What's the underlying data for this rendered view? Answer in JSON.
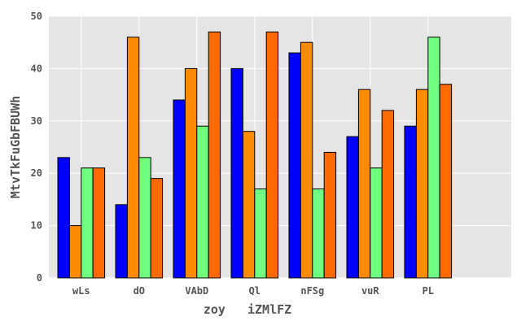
{
  "chart_data": {
    "type": "bar",
    "title": "",
    "xlabel": "zoy   iZMlFZ",
    "ylabel": "MtvTkFuGbFBUWh",
    "ylim": [
      0,
      50
    ],
    "yticks": [
      0,
      10,
      20,
      30,
      40,
      50
    ],
    "grid": true,
    "categories": [
      "wLs",
      "dO",
      "VAbD",
      "Ql",
      "nFSg",
      "vuR",
      "PL"
    ],
    "series": [
      {
        "color": "#0000ff",
        "values": [
          23,
          14,
          34,
          40,
          43,
          27,
          29
        ]
      },
      {
        "color": "#ff8c00",
        "values": [
          10,
          46,
          40,
          28,
          45,
          36,
          36
        ]
      },
      {
        "color": "#70ff80",
        "values": [
          21,
          23,
          29,
          17,
          17,
          21,
          46
        ]
      },
      {
        "color": "#ff6a00",
        "values": [
          21,
          19,
          47,
          47,
          24,
          32,
          37
        ]
      }
    ],
    "colors": {
      "plot_background": "#e5e5e5"
    }
  }
}
